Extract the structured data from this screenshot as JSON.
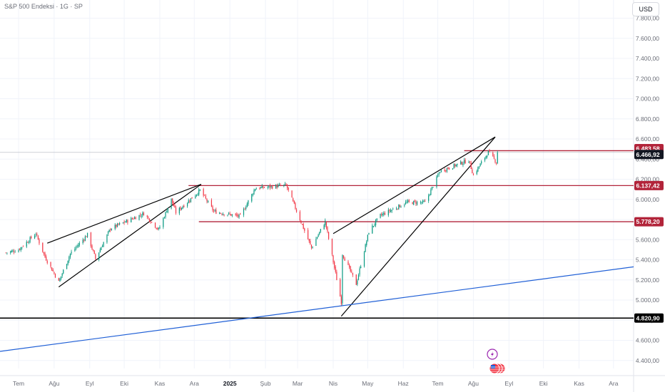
{
  "header": {
    "title": "S&P 500 Endeksi · 1G · SP",
    "currency": "USD"
  },
  "colors": {
    "up": "#089981",
    "down": "#f23645",
    "level_line": "#b2243a",
    "trend_line": "#1f5fd6",
    "support": "#000000",
    "grid": "#f0f3fa"
  },
  "chart_data": {
    "type": "candlestick",
    "title": "S&P 500 Endeksi · 1G · SP",
    "y_ticks": [
      "7.800,00",
      "7.600,00",
      "7.400,00",
      "7.200,00",
      "7.000,00",
      "6.800,00",
      "6.600,00",
      "6.400,00",
      "6.200,00",
      "6.000,00",
      "5.800,00",
      "5.600,00",
      "5.400,00",
      "5.200,00",
      "5.000,00",
      "4.800,00",
      "4.600,00",
      "4.400,00"
    ],
    "x_ticks": [
      "Tem",
      "Ağu",
      "Eyl",
      "Eki",
      "Kas",
      "Ara",
      "2025",
      "Şub",
      "Mar",
      "Nis",
      "May",
      "Haz",
      "Tem",
      "Ağu",
      "Eyl",
      "Eki",
      "Kas",
      "Ara"
    ],
    "ylim": [
      4340,
      7900
    ],
    "price_labels": [
      {
        "label": "6.483,58",
        "value": 6483.58,
        "kind": "level"
      },
      {
        "label": "6.466,92",
        "value": 6466.92,
        "kind": "current"
      },
      {
        "label": "6.137,42",
        "value": 6137.42,
        "kind": "level"
      },
      {
        "label": "5.778,20",
        "value": 5778.2,
        "kind": "level"
      },
      {
        "label": "4.820,90",
        "value": 4820.9,
        "kind": "support"
      }
    ],
    "horizontal_levels": [
      {
        "value": 6483.58,
        "from": "2025-07-24"
      },
      {
        "value": 6137.42,
        "from": "2024-11-26"
      },
      {
        "value": 5778.2,
        "from": "2024-12-05"
      },
      {
        "value": 4820.9,
        "from": "start"
      }
    ],
    "trendlines": [
      {
        "from": [
          "2024-07-26",
          5565
        ],
        "to": [
          "2024-12-07",
          6150
        ],
        "color": "black"
      },
      {
        "from": [
          "2024-08-05",
          5130
        ],
        "to": [
          "2024-12-07",
          6150
        ],
        "color": "black"
      },
      {
        "from": [
          "2025-04-01",
          5660
        ],
        "to": [
          "2025-08-20",
          6620
        ],
        "color": "black"
      },
      {
        "from": [
          "2025-04-08",
          4840
        ],
        "to": [
          "2025-08-20",
          6620
        ],
        "color": "black"
      },
      {
        "from": [
          "start",
          4490
        ],
        "to": [
          "end",
          5330
        ],
        "color": "blue"
      }
    ],
    "series": [
      {
        "anchors": [
          [
            "2024-06-20",
            5470
          ],
          [
            "2024-07-01",
            5500
          ],
          [
            "2024-07-16",
            5660
          ],
          [
            "2024-07-24",
            5430
          ],
          [
            "2024-08-05",
            5180
          ],
          [
            "2024-08-15",
            5460
          ],
          [
            "2024-08-30",
            5650
          ],
          [
            "2024-09-06",
            5410
          ],
          [
            "2024-09-19",
            5710
          ],
          [
            "2024-10-18",
            5860
          ],
          [
            "2024-10-31",
            5700
          ],
          [
            "2024-11-11",
            6000
          ],
          [
            "2024-11-15",
            5870
          ],
          [
            "2024-12-06",
            6090
          ],
          [
            "2024-12-18",
            5880
          ],
          [
            "2025-01-10",
            5830
          ],
          [
            "2025-01-23",
            6110
          ],
          [
            "2025-02-19",
            6140
          ],
          [
            "2025-03-13",
            5520
          ],
          [
            "2025-03-25",
            5780
          ],
          [
            "2025-04-08",
            4980
          ],
          [
            "2025-04-09",
            5460
          ],
          [
            "2025-04-21",
            5160
          ],
          [
            "2025-05-02",
            5680
          ],
          [
            "2025-05-12",
            5840
          ],
          [
            "2025-06-04",
            5970
          ],
          [
            "2025-06-20",
            5970
          ],
          [
            "2025-07-03",
            6280
          ],
          [
            "2025-07-28",
            6390
          ],
          [
            "2025-08-01",
            6240
          ],
          [
            "2025-08-14",
            6470
          ],
          [
            "2025-08-21",
            6370
          ],
          [
            "2025-08-22",
            6466.92
          ]
        ]
      }
    ]
  }
}
